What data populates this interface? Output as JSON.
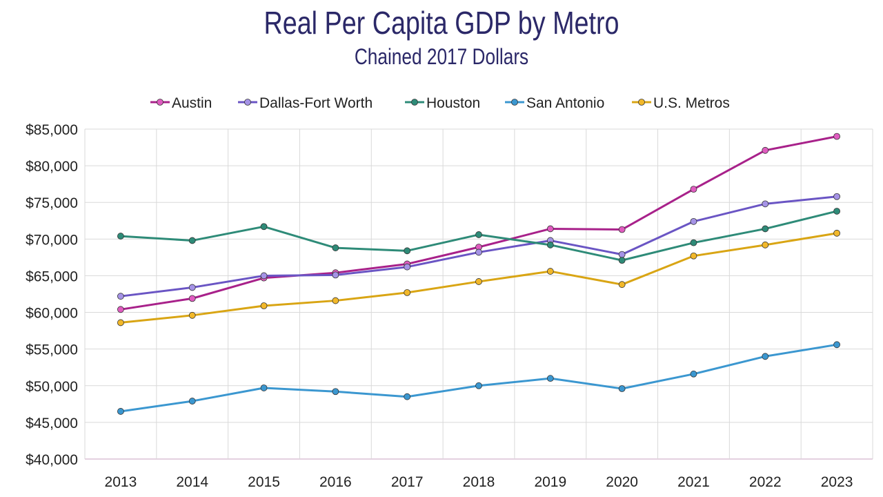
{
  "chart_data": {
    "type": "line",
    "title": "Real Per Capita GDP by Metro",
    "subtitle": "Chained 2017 Dollars",
    "xlabel": "",
    "ylabel": "",
    "categories": [
      "2013",
      "2014",
      "2015",
      "2016",
      "2017",
      "2018",
      "2019",
      "2020",
      "2021",
      "2022",
      "2023"
    ],
    "ylim": [
      40000,
      85000
    ],
    "yticks": [
      40000,
      45000,
      50000,
      55000,
      60000,
      65000,
      70000,
      75000,
      80000,
      85000
    ],
    "ytick_labels": [
      "$40,000",
      "$45,000",
      "$50,000",
      "$55,000",
      "$60,000",
      "$65,000",
      "$70,000",
      "$75,000",
      "$80,000",
      "$85,000"
    ],
    "grid": true,
    "legend_position": "top",
    "series": [
      {
        "name": "Austin",
        "color": "#a8218a",
        "marker": "#e05cc0",
        "values": [
          60400,
          61900,
          64700,
          65400,
          66600,
          68900,
          71400,
          71300,
          76800,
          82100,
          84000
        ]
      },
      {
        "name": "Dallas-Fort Worth",
        "color": "#6a55c4",
        "marker": "#a593e6",
        "values": [
          62200,
          63400,
          65000,
          65100,
          66200,
          68200,
          69800,
          67900,
          72400,
          74800,
          75800
        ]
      },
      {
        "name": "Houston",
        "color": "#2e8b78",
        "marker": "#2e8b78",
        "values": [
          70400,
          69800,
          71700,
          68800,
          68400,
          70600,
          69200,
          67100,
          69500,
          71400,
          73800
        ]
      },
      {
        "name": "San Antonio",
        "color": "#3b97d0",
        "marker": "#3b97d0",
        "values": [
          46500,
          47900,
          49700,
          49200,
          48500,
          50000,
          51000,
          49600,
          51600,
          54000,
          55600
        ]
      },
      {
        "name": "U.S. Metros",
        "color": "#d9a514",
        "marker": "#f2b82a",
        "values": [
          58600,
          59600,
          60900,
          61600,
          62700,
          64200,
          65600,
          63800,
          67700,
          69200,
          70800
        ]
      }
    ]
  }
}
